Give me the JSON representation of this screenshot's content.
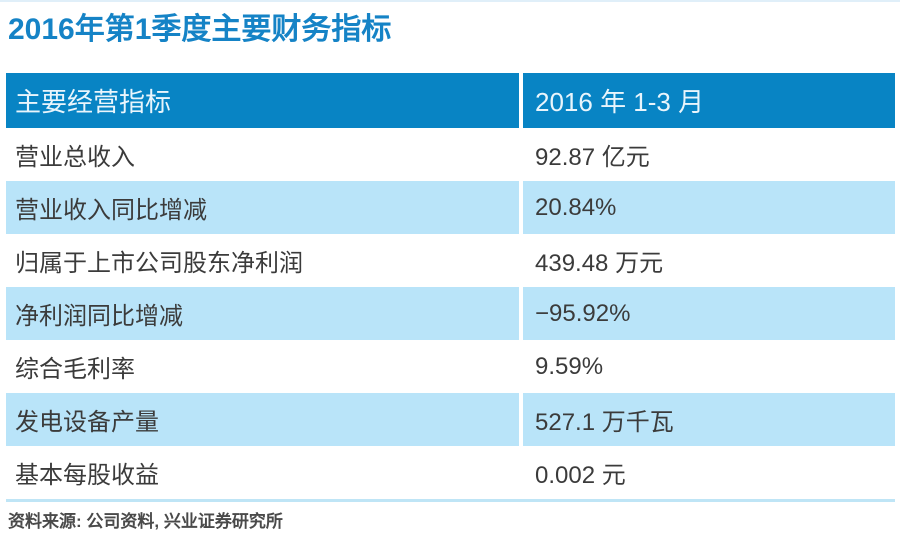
{
  "title": "2016年第1季度主要财务指标",
  "table": {
    "header": {
      "indicator": "主要经营指标",
      "period": "2016 年 1-3 月"
    },
    "rows": [
      {
        "label": "营业总收入",
        "value": "92.87 亿元"
      },
      {
        "label": "营业收入同比增减",
        "value": "20.84%"
      },
      {
        "label": "归属于上市公司股东净利润",
        "value": "439.48 万元"
      },
      {
        "label": "净利润同比增减",
        "value": "−95.92%"
      },
      {
        "label": "综合毛利率",
        "value": "9.59%"
      },
      {
        "label": "发电设备产量",
        "value": "527.1 万千瓦"
      },
      {
        "label": "基本每股收益",
        "value": "0.002 元"
      }
    ]
  },
  "source_note": "资料来源: 公司资料, 兴业证券研究所",
  "colors": {
    "title_blue": "#1583c6",
    "header_bg": "#0884c4",
    "header_text": "#e9f5fc",
    "row_alt_bg": "#b9e4f9",
    "row_text": "#3b3b3b",
    "divider_white": "#ffffff",
    "bottom_rule": "#bfe5f6",
    "top_rule": "#e0eff9",
    "source_text": "#4a4a4a"
  },
  "chart_data": {
    "type": "table",
    "title": "2016年第1季度主要财务指标",
    "columns": [
      "主要经营指标",
      "2016 年 1-3 月"
    ],
    "rows": [
      [
        "营业总收入",
        "92.87 亿元"
      ],
      [
        "营业收入同比增减",
        "20.84%"
      ],
      [
        "归属于上市公司股东净利润",
        "439.48 万元"
      ],
      [
        "净利润同比增减",
        "−95.92%"
      ],
      [
        "综合毛利率",
        "9.59%"
      ],
      [
        "发电设备产量",
        "527.1 万千瓦"
      ],
      [
        "基本每股收益",
        "0.002 元"
      ]
    ],
    "values_numeric": [
      92.87,
      20.84,
      439.48,
      -95.92,
      9.59,
      527.1,
      0.002
    ],
    "units": [
      "亿元",
      "%",
      "万元",
      "%",
      "%",
      "万千瓦",
      "元"
    ],
    "source": "资料来源: 公司资料, 兴业证券研究所",
    "layout": {
      "zebra_striping": true,
      "header_fill": "#0884c4",
      "alt_row_fill": "#b9e4f9"
    }
  }
}
